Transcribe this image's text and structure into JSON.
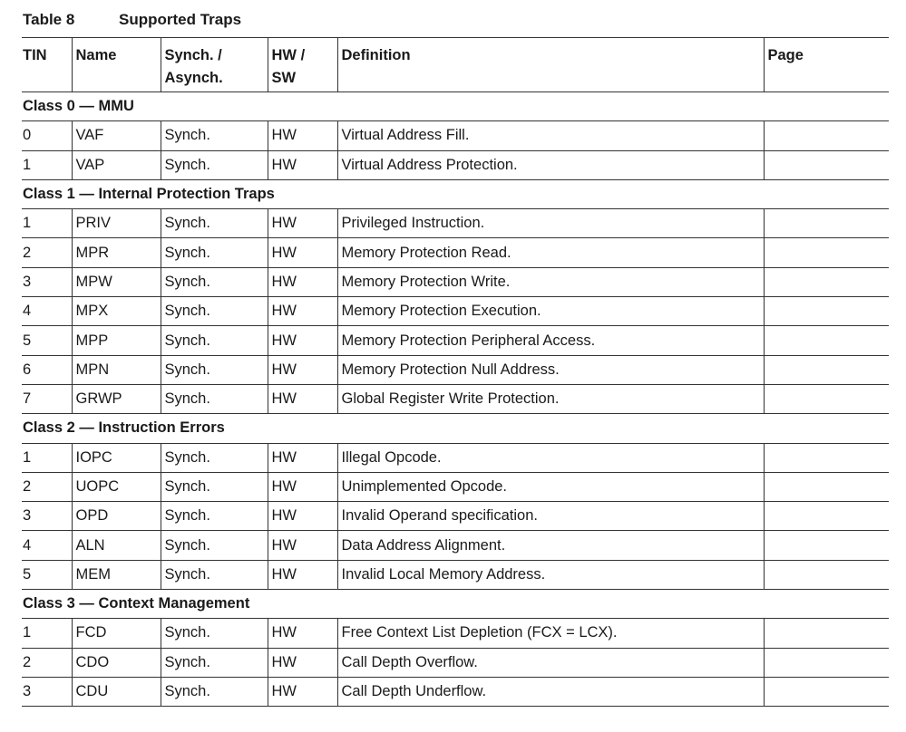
{
  "caption": {
    "number": "Table 8",
    "title": "Supported Traps"
  },
  "headers": [
    "TIN",
    "Name",
    "Synch. / Asynch.",
    "HW / SW",
    "Definition",
    "Page"
  ],
  "groups": [
    {
      "title": "Class 0 — MMU",
      "rows": [
        [
          "0",
          "VAF",
          "Synch.",
          "HW",
          "Virtual Address Fill.",
          ""
        ],
        [
          "1",
          "VAP",
          "Synch.",
          "HW",
          "Virtual Address Protection.",
          ""
        ]
      ]
    },
    {
      "title": "Class 1 — Internal Protection Traps",
      "rows": [
        [
          "1",
          "PRIV",
          "Synch.",
          "HW",
          "Privileged Instruction.",
          ""
        ],
        [
          "2",
          "MPR",
          "Synch.",
          "HW",
          "Memory Protection Read.",
          ""
        ],
        [
          "3",
          "MPW",
          "Synch.",
          "HW",
          "Memory Protection Write.",
          ""
        ],
        [
          "4",
          "MPX",
          "Synch.",
          "HW",
          "Memory Protection Execution.",
          ""
        ],
        [
          "5",
          "MPP",
          "Synch.",
          "HW",
          "Memory Protection Peripheral Access.",
          ""
        ],
        [
          "6",
          "MPN",
          "Synch.",
          "HW",
          "Memory Protection Null Address.",
          ""
        ],
        [
          "7",
          "GRWP",
          "Synch.",
          "HW",
          "Global Register Write Protection.",
          ""
        ]
      ]
    },
    {
      "title": "Class 2 — Instruction Errors",
      "rows": [
        [
          "1",
          "IOPC",
          "Synch.",
          "HW",
          "Illegal Opcode.",
          ""
        ],
        [
          "2",
          "UOPC",
          "Synch.",
          "HW",
          "Unimplemented Opcode.",
          ""
        ],
        [
          "3",
          "OPD",
          "Synch.",
          "HW",
          "Invalid Operand specification.",
          ""
        ],
        [
          "4",
          "ALN",
          "Synch.",
          "HW",
          "Data Address Alignment.",
          ""
        ],
        [
          "5",
          "MEM",
          "Synch.",
          "HW",
          "Invalid Local Memory Address.",
          ""
        ]
      ]
    },
    {
      "title": "Class 3 — Context Management",
      "rows": [
        [
          "1",
          "FCD",
          "Synch.",
          "HW",
          "Free Context List Depletion (FCX = LCX).",
          ""
        ],
        [
          "2",
          "CDO",
          "Synch.",
          "HW",
          "Call Depth Overflow.",
          ""
        ],
        [
          "3",
          "CDU",
          "Synch.",
          "HW",
          "Call Depth Underflow.",
          ""
        ]
      ]
    }
  ]
}
